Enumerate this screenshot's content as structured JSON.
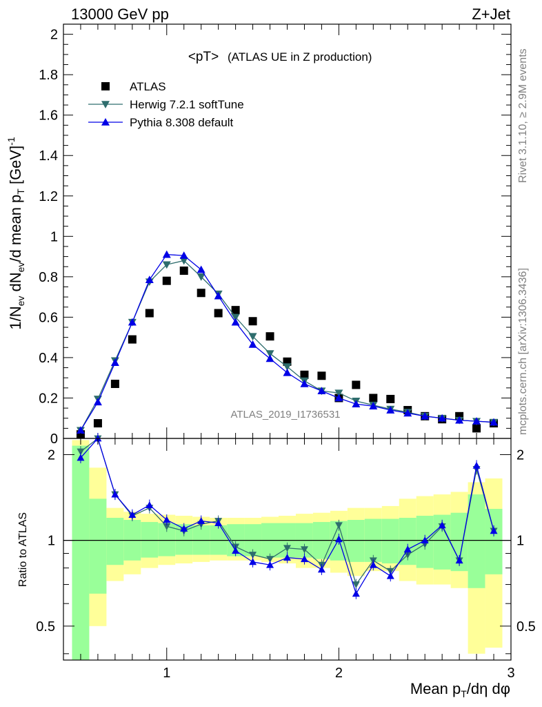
{
  "header": {
    "left": "13000 GeV pp",
    "right": "Z+Jet"
  },
  "side_labels": {
    "rivet": "Rivet 3.1.10, ≥ 2.9M events",
    "mcplots": "mcplots.cern.ch [arXiv:1306.3436]"
  },
  "chart_data": [
    {
      "type": "scatter",
      "title_main": "<pT>",
      "title_sub": "(ATLAS UE in Z production)",
      "watermark": "ATLAS_2019_I1736531",
      "ylabel": "1/N_ev dN_ev/d mean p_T [GeV]^-1",
      "xlim": [
        0.4,
        3.0
      ],
      "ylim": [
        0,
        2.05
      ],
      "yticks": [
        "0",
        "0.2",
        "0.4",
        "0.6",
        "0.8",
        "1",
        "1.2",
        "1.4",
        "1.6",
        "1.8",
        "2"
      ],
      "x": [
        0.5,
        0.6,
        0.7,
        0.8,
        0.9,
        1.0,
        1.1,
        1.2,
        1.3,
        1.4,
        1.5,
        1.6,
        1.7,
        1.8,
        1.9,
        2.0,
        2.1,
        2.2,
        2.3,
        2.4,
        2.5,
        2.6,
        2.7,
        2.8,
        2.9
      ],
      "series": [
        {
          "name": "ATLAS",
          "color": "#000000",
          "marker": "square",
          "values": [
            0.02,
            0.075,
            0.27,
            0.49,
            0.62,
            0.78,
            0.83,
            0.72,
            0.62,
            0.635,
            0.58,
            0.505,
            0.38,
            0.315,
            0.31,
            0.2,
            0.265,
            0.2,
            0.195,
            0.14,
            0.11,
            0.095,
            0.11,
            0.05,
            0.075
          ]
        },
        {
          "name": "Herwig 7.2.1 softTune",
          "color": "#2e6d6d",
          "marker": "triangle-down",
          "values": [
            0.04,
            0.195,
            0.385,
            0.575,
            0.775,
            0.86,
            0.88,
            0.8,
            0.715,
            0.6,
            0.505,
            0.42,
            0.355,
            0.285,
            0.235,
            0.225,
            0.185,
            0.165,
            0.145,
            0.13,
            0.11,
            0.1,
            0.09,
            0.085,
            0.08
          ]
        },
        {
          "name": "Pythia 8.308 default",
          "color": "#0000e6",
          "marker": "triangle-up",
          "values": [
            0.04,
            0.18,
            0.375,
            0.575,
            0.785,
            0.91,
            0.905,
            0.835,
            0.705,
            0.575,
            0.465,
            0.395,
            0.325,
            0.27,
            0.235,
            0.2,
            0.17,
            0.16,
            0.14,
            0.125,
            0.11,
            0.1,
            0.09,
            0.085,
            0.08
          ]
        }
      ]
    },
    {
      "type": "line",
      "ylabel": "Ratio to ATLAS",
      "xlabel": "Mean p_T/dη dφ",
      "xlim": [
        0.4,
        3.0
      ],
      "ylim": [
        0.38,
        2.28
      ],
      "log_scale": true,
      "reference": 1,
      "yticks": [
        "0.5",
        "1",
        "2"
      ],
      "xticks": [
        "1",
        "2",
        "3"
      ],
      "x": [
        0.5,
        0.6,
        0.7,
        0.8,
        0.9,
        1.0,
        1.1,
        1.2,
        1.3,
        1.4,
        1.5,
        1.6,
        1.7,
        1.8,
        1.9,
        2.0,
        2.1,
        2.2,
        2.3,
        2.4,
        2.5,
        2.6,
        2.7,
        2.8,
        2.9
      ],
      "bands": {
        "green_color": "#99ff99",
        "yellow_color": "#ffff99",
        "green": [
          [
            0.3,
            2.15
          ],
          [
            0.65,
            1.4
          ],
          [
            0.82,
            1.2
          ],
          [
            0.85,
            1.18
          ],
          [
            0.87,
            1.16
          ],
          [
            0.88,
            1.15
          ],
          [
            0.89,
            1.14
          ],
          [
            0.89,
            1.13
          ],
          [
            0.89,
            1.13
          ],
          [
            0.88,
            1.14
          ],
          [
            0.88,
            1.14
          ],
          [
            0.87,
            1.15
          ],
          [
            0.87,
            1.15
          ],
          [
            0.87,
            1.15
          ],
          [
            0.86,
            1.16
          ],
          [
            0.85,
            1.17
          ],
          [
            0.84,
            1.18
          ],
          [
            0.84,
            1.19
          ],
          [
            0.83,
            1.19
          ],
          [
            0.82,
            1.2
          ],
          [
            0.8,
            1.22
          ],
          [
            0.79,
            1.23
          ],
          [
            0.78,
            1.25
          ],
          [
            0.68,
            1.45
          ],
          [
            0.76,
            1.29
          ]
        ],
        "yellow": [
          [
            0.25,
            2.25
          ],
          [
            0.5,
            1.8
          ],
          [
            0.72,
            1.3
          ],
          [
            0.76,
            1.26
          ],
          [
            0.8,
            1.24
          ],
          [
            0.82,
            1.23
          ],
          [
            0.83,
            1.22
          ],
          [
            0.84,
            1.21
          ],
          [
            0.85,
            1.2
          ],
          [
            0.85,
            1.2
          ],
          [
            0.85,
            1.2
          ],
          [
            0.84,
            1.21
          ],
          [
            0.83,
            1.22
          ],
          [
            0.8,
            1.24
          ],
          [
            0.8,
            1.25
          ],
          [
            0.77,
            1.27
          ],
          [
            0.75,
            1.3
          ],
          [
            0.78,
            1.3
          ],
          [
            0.78,
            1.32
          ],
          [
            0.72,
            1.4
          ],
          [
            0.7,
            1.43
          ],
          [
            0.7,
            1.45
          ],
          [
            0.68,
            1.48
          ],
          [
            0.4,
            1.6
          ],
          [
            0.42,
            1.65
          ]
        ]
      },
      "series": [
        {
          "name": "Herwig 7.2.1 softTune",
          "color": "#2e6d6d",
          "marker": "triangle-down",
          "values": [
            2.05,
            2.3,
            1.45,
            1.22,
            1.3,
            1.12,
            1.08,
            1.14,
            1.17,
            0.95,
            0.89,
            0.86,
            0.94,
            0.93,
            0.82,
            1.13,
            0.7,
            0.85,
            0.78,
            0.89,
            0.97,
            1.12,
            0.85,
            1.78,
            1.08
          ]
        },
        {
          "name": "Pythia 8.308 default",
          "color": "#0000e6",
          "marker": "triangle-up",
          "values": [
            1.95,
            2.35,
            1.45,
            1.23,
            1.33,
            1.18,
            1.1,
            1.17,
            1.15,
            0.92,
            0.84,
            0.82,
            0.87,
            0.86,
            0.79,
            1.01,
            0.65,
            0.82,
            0.75,
            0.93,
            1.0,
            1.13,
            0.85,
            1.83,
            1.08
          ]
        }
      ]
    }
  ]
}
